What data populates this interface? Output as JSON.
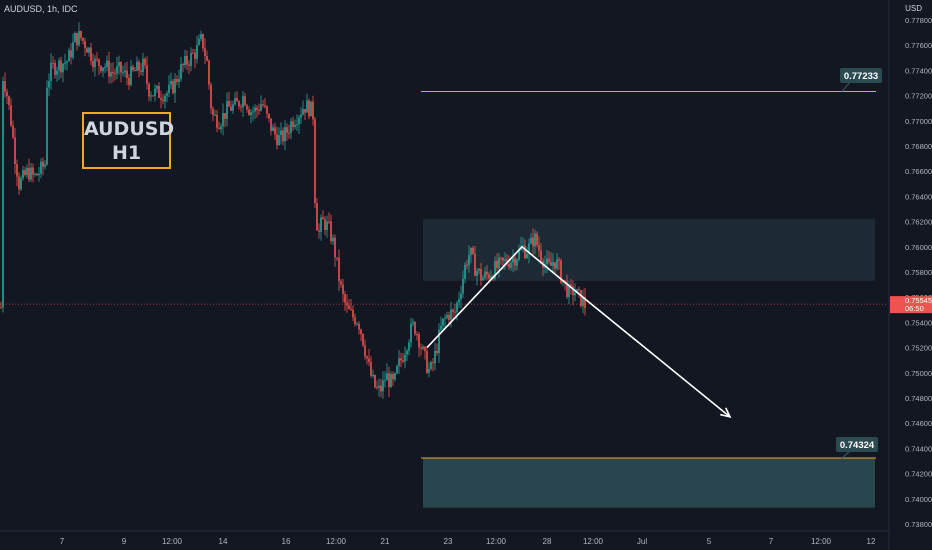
{
  "header": {
    "symbol": "AUDUSD, 1h, IDC",
    "currency": "USD"
  },
  "title_box": {
    "line1": "AUDUSD",
    "line2": "H1"
  },
  "chart_data": {
    "type": "candlestick",
    "x_tick_labels": [
      "7",
      "9",
      "12:00",
      "14",
      "16",
      "12:00",
      "21",
      "23",
      "12:00",
      "28",
      "12:00",
      "Jul",
      "5",
      "7",
      "12:00",
      "12"
    ],
    "y_tick_labels": [
      "0.77800",
      "0.77600",
      "0.77400",
      "0.77200",
      "0.77000",
      "0.76800",
      "0.76600",
      "0.76400",
      "0.76200",
      "0.76000",
      "0.75800",
      "0.75600",
      "0.75400",
      "0.75200",
      "0.75000",
      "0.74800",
      "0.74600",
      "0.74400",
      "0.74200",
      "0.74000",
      "0.73800"
    ],
    "ylim": [
      0.7375,
      0.7785
    ],
    "current_price": {
      "value": "0.75545",
      "countdown": "06:50",
      "color": "#ef5350"
    },
    "level_upper": {
      "value": "0.77233",
      "label": "0.77233",
      "color": "#f5a623"
    },
    "level_lower": {
      "value": "0.74324",
      "label": "0.74324",
      "color": "#f5a623"
    },
    "resistance_zone": {
      "from": 0.7573,
      "to": 0.7622,
      "color": "#1e2a36"
    },
    "target_zone": {
      "from": 0.7393,
      "to": 0.7432,
      "color": "#2c4a52"
    },
    "projection_path": [
      [
        0.752
      ],
      [
        0.76
      ],
      [
        0.7558
      ],
      [
        0.7465
      ]
    ],
    "colors": {
      "up": "#26a69a",
      "down": "#ef5350",
      "label_bg": "#2c4a52",
      "background": "#131722"
    },
    "grid": false
  }
}
